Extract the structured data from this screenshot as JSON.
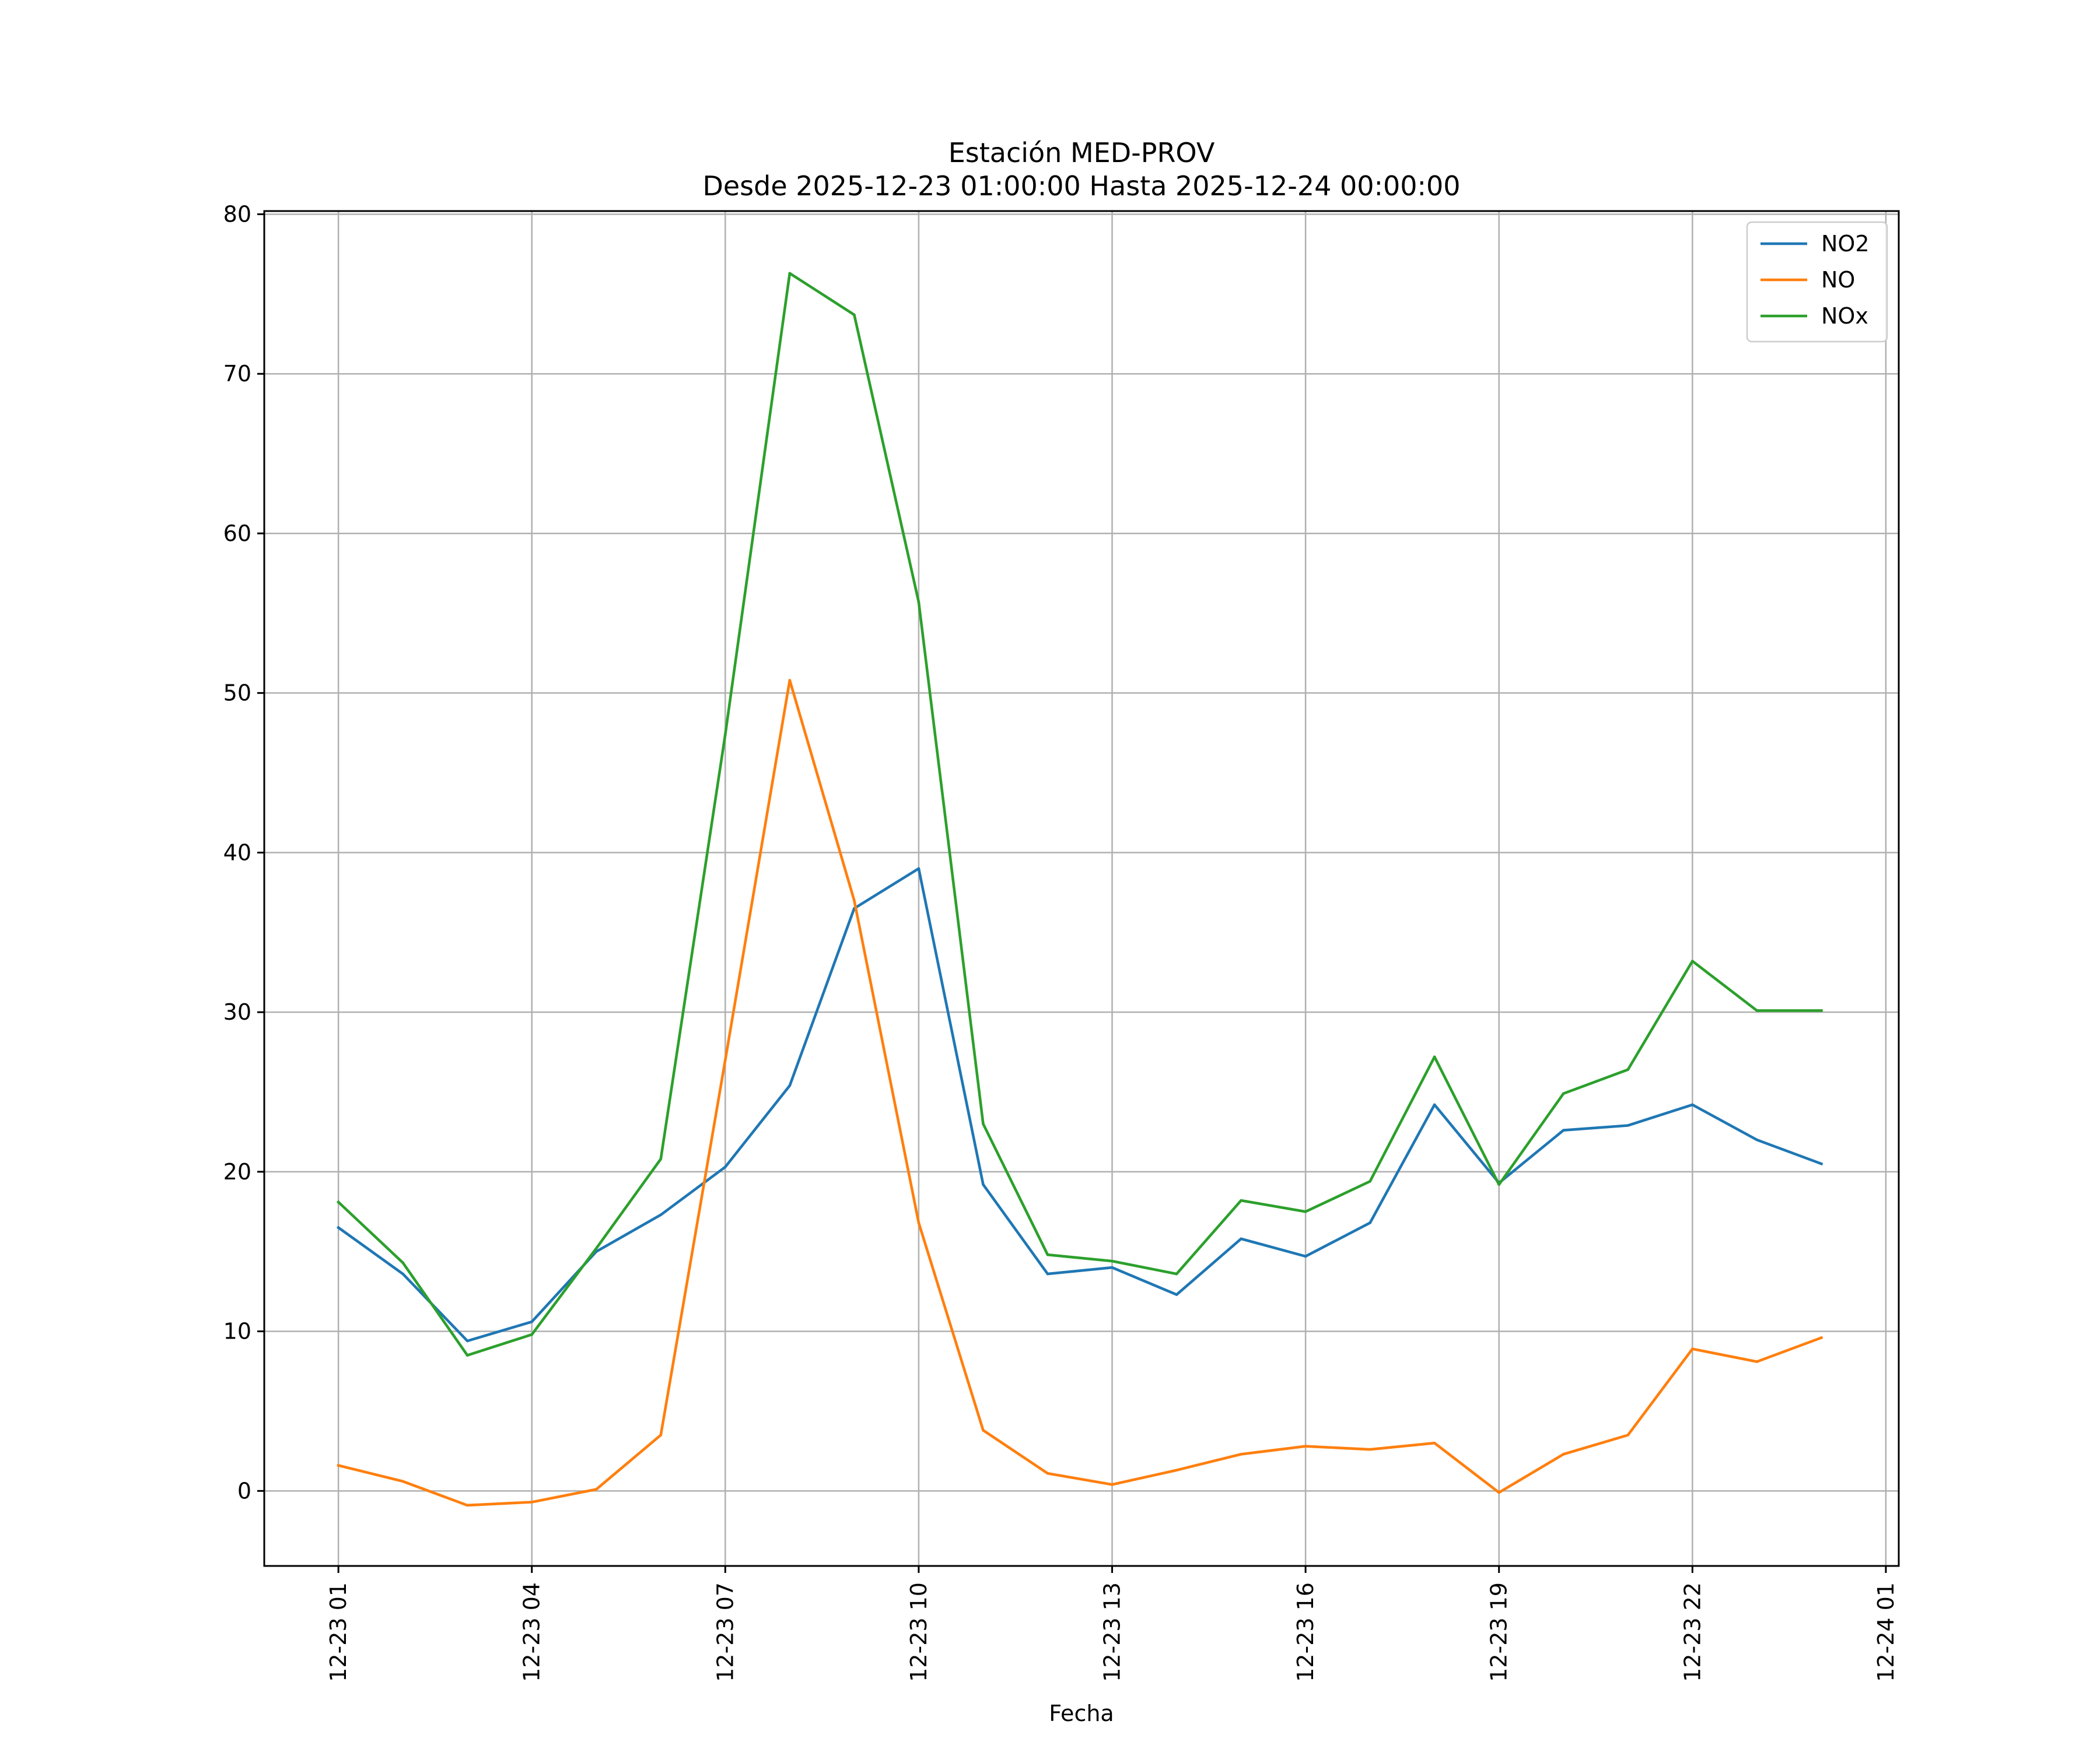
{
  "chart_data": {
    "type": "line",
    "title": "Estación MED-PROV",
    "subtitle": "Desde 2025-12-23 01:00:00 Hasta 2025-12-24 00:00:00",
    "xlabel": "Fecha",
    "ylabel": "",
    "x": [
      1,
      2,
      3,
      4,
      5,
      6,
      7,
      8,
      9,
      10,
      11,
      12,
      13,
      14,
      15,
      16,
      17,
      18,
      19,
      20,
      21,
      22,
      23,
      24
    ],
    "x_unit": "hours since 2025-12-23 00:00",
    "xlim": [
      -0.15,
      25.2
    ],
    "ylim": [
      -4.7,
      80.2
    ],
    "yticks": [
      0,
      10,
      20,
      30,
      40,
      50,
      60,
      70,
      80
    ],
    "xticks": [
      {
        "value": 1,
        "label": "12-23 01"
      },
      {
        "value": 4,
        "label": "12-23 04"
      },
      {
        "value": 7,
        "label": "12-23 07"
      },
      {
        "value": 10,
        "label": "12-23 10"
      },
      {
        "value": 13,
        "label": "12-23 13"
      },
      {
        "value": 16,
        "label": "12-23 16"
      },
      {
        "value": 19,
        "label": "12-23 19"
      },
      {
        "value": 22,
        "label": "12-23 22"
      },
      {
        "value": 25,
        "label": "12-24 01"
      }
    ],
    "grid": true,
    "legend_position": "top-right",
    "series": [
      {
        "name": "NO2",
        "color": "#1f77b4",
        "values": [
          16.5,
          13.6,
          9.4,
          10.6,
          15.0,
          17.3,
          20.3,
          25.4,
          36.5,
          39.0,
          19.2,
          13.6,
          14.0,
          12.3,
          15.8,
          14.7,
          16.8,
          24.2,
          19.3,
          22.6,
          22.9,
          24.2,
          22.0,
          20.5
        ]
      },
      {
        "name": "NO",
        "color": "#ff7f0e",
        "values": [
          1.6,
          0.6,
          -0.9,
          -0.7,
          0.1,
          3.5,
          27.0,
          50.8,
          37.0,
          16.8,
          3.8,
          1.1,
          0.4,
          1.3,
          2.3,
          2.8,
          2.6,
          3.0,
          -0.1,
          2.3,
          3.5,
          8.9,
          8.1,
          9.6
        ]
      },
      {
        "name": "NOx",
        "color": "#2ca02c",
        "values": [
          18.1,
          14.3,
          8.5,
          9.8,
          15.2,
          20.8,
          47.4,
          76.3,
          73.7,
          55.7,
          23.0,
          14.8,
          14.4,
          13.6,
          18.2,
          17.5,
          19.4,
          27.2,
          19.2,
          24.9,
          26.4,
          33.2,
          30.1,
          30.1
        ]
      }
    ]
  }
}
